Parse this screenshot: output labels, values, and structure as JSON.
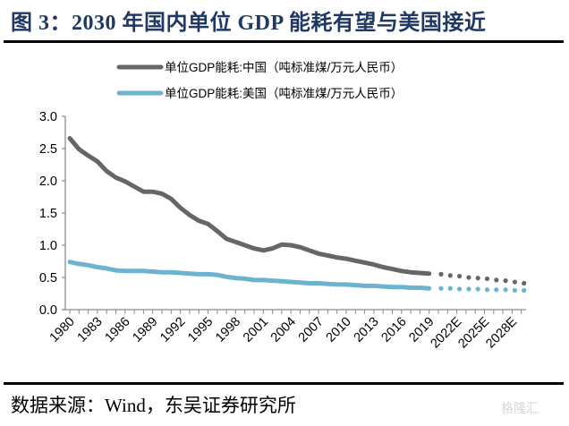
{
  "title": "图 3：2030 年国内单位 GDP 能耗有望与美国接近",
  "source": "数据来源：Wind，东吴证券研究所",
  "watermark": "格隆汇",
  "chart_data": {
    "type": "line",
    "title": "图 3：2030 年国内单位 GDP 能耗有望与美国接近",
    "xlabel": "",
    "ylabel": "",
    "ylim": [
      0,
      3.0
    ],
    "yticks": [
      "0.0",
      "0.5",
      "1.0",
      "1.5",
      "2.0",
      "2.5",
      "3.0"
    ],
    "yticks_values": [
      0,
      0.5,
      1.0,
      1.5,
      2.0,
      2.5,
      3.0
    ],
    "xlim": [
      1980,
      2030
    ],
    "xtick_labels": [
      "1980",
      "1983",
      "1986",
      "1989",
      "1992",
      "1995",
      "1998",
      "2001",
      "2004",
      "2007",
      "2010",
      "2013",
      "2016",
      "2019",
      "2022E",
      "2025E",
      "2028E"
    ],
    "xtick_values": [
      1980,
      1983,
      1986,
      1989,
      1992,
      1995,
      1998,
      2001,
      2004,
      2007,
      2010,
      2013,
      2016,
      2019,
      2022,
      2025,
      2028
    ],
    "grid": false,
    "legend_position": "top-center",
    "series": [
      {
        "name": "单位GDP能耗:中国（吨标准煤/万元人民币）",
        "color": "#666666",
        "actual_years": [
          1980,
          1981,
          1982,
          1983,
          1984,
          1985,
          1986,
          1987,
          1988,
          1989,
          1990,
          1991,
          1992,
          1993,
          1994,
          1995,
          1996,
          1997,
          1998,
          1999,
          2000,
          2001,
          2002,
          2003,
          2004,
          2005,
          2006,
          2007,
          2008,
          2009,
          2010,
          2011,
          2012,
          2013,
          2014,
          2015,
          2016,
          2017,
          2018,
          2019
        ],
        "actual_values": [
          2.66,
          2.49,
          2.39,
          2.3,
          2.15,
          2.05,
          1.99,
          1.91,
          1.83,
          1.83,
          1.8,
          1.72,
          1.58,
          1.47,
          1.38,
          1.33,
          1.22,
          1.1,
          1.05,
          1.0,
          0.95,
          0.92,
          0.95,
          1.01,
          1.0,
          0.97,
          0.92,
          0.87,
          0.84,
          0.81,
          0.79,
          0.76,
          0.73,
          0.7,
          0.66,
          0.63,
          0.6,
          0.58,
          0.57,
          0.56
        ],
        "forecast_years": [
          2020,
          2021,
          2022,
          2023,
          2024,
          2025,
          2026,
          2027,
          2028,
          2029
        ],
        "forecast_values": [
          0.55,
          0.53,
          0.52,
          0.5,
          0.49,
          0.48,
          0.46,
          0.45,
          0.43,
          0.41
        ]
      },
      {
        "name": "单位GDP能耗:美国（吨标准煤/万元人民币）",
        "color": "#6db3cf",
        "actual_years": [
          1980,
          1981,
          1982,
          1983,
          1984,
          1985,
          1986,
          1987,
          1988,
          1989,
          1990,
          1991,
          1992,
          1993,
          1994,
          1995,
          1996,
          1997,
          1998,
          1999,
          2000,
          2001,
          2002,
          2003,
          2004,
          2005,
          2006,
          2007,
          2008,
          2009,
          2010,
          2011,
          2012,
          2013,
          2014,
          2015,
          2016,
          2017,
          2018,
          2019
        ],
        "actual_values": [
          0.74,
          0.71,
          0.69,
          0.66,
          0.64,
          0.61,
          0.6,
          0.6,
          0.6,
          0.59,
          0.58,
          0.58,
          0.57,
          0.56,
          0.55,
          0.55,
          0.54,
          0.51,
          0.49,
          0.48,
          0.46,
          0.46,
          0.45,
          0.44,
          0.43,
          0.42,
          0.41,
          0.41,
          0.4,
          0.39,
          0.39,
          0.38,
          0.37,
          0.37,
          0.36,
          0.35,
          0.35,
          0.34,
          0.34,
          0.33
        ],
        "forecast_years": [
          2020,
          2021,
          2022,
          2023,
          2024,
          2025,
          2026,
          2027,
          2028,
          2029
        ],
        "forecast_values": [
          0.33,
          0.33,
          0.32,
          0.32,
          0.32,
          0.31,
          0.31,
          0.31,
          0.3,
          0.3
        ]
      }
    ]
  }
}
